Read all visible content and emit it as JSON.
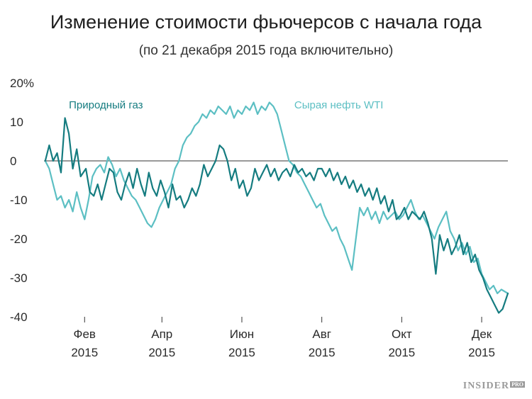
{
  "chart_data": {
    "type": "line",
    "title": "Изменение стоимости фьючерсов с начала года",
    "subtitle": "(по 21 декабря 2015 года включительно)",
    "y_ticks": [
      "20%",
      "10",
      "0",
      "-10",
      "-20",
      "-30",
      "-40"
    ],
    "ylim": [
      -40,
      20
    ],
    "xlim": [
      "2015-01-01",
      "2015-12-21"
    ],
    "x_ticks": [
      {
        "date": "2015-02-01",
        "month": "Фев",
        "year": "2015"
      },
      {
        "date": "2015-04-01",
        "month": "Апр",
        "year": "2015"
      },
      {
        "date": "2015-06-01",
        "month": "Июн",
        "year": "2015"
      },
      {
        "date": "2015-08-01",
        "month": "Авг",
        "year": "2015"
      },
      {
        "date": "2015-10-01",
        "month": "Окт",
        "year": "2015"
      },
      {
        "date": "2015-12-01",
        "month": "Дек",
        "year": "2015"
      }
    ],
    "grid": false,
    "zero_line": true,
    "series": [
      {
        "name": "Природный газ",
        "color": "#157c80",
        "points": [
          [
            "2015-01-02",
            0
          ],
          [
            "2015-01-05",
            4
          ],
          [
            "2015-01-08",
            0
          ],
          [
            "2015-01-11",
            2
          ],
          [
            "2015-01-14",
            -3
          ],
          [
            "2015-01-17",
            11
          ],
          [
            "2015-01-20",
            7
          ],
          [
            "2015-01-23",
            -2
          ],
          [
            "2015-01-26",
            3
          ],
          [
            "2015-01-29",
            -4
          ],
          [
            "2015-02-02",
            -2
          ],
          [
            "2015-02-05",
            -8
          ],
          [
            "2015-02-08",
            -9
          ],
          [
            "2015-02-11",
            -6
          ],
          [
            "2015-02-14",
            -10
          ],
          [
            "2015-02-17",
            -6
          ],
          [
            "2015-02-20",
            -2
          ],
          [
            "2015-02-23",
            -3
          ],
          [
            "2015-02-26",
            -8
          ],
          [
            "2015-03-01",
            -10
          ],
          [
            "2015-03-04",
            -6
          ],
          [
            "2015-03-07",
            -3
          ],
          [
            "2015-03-10",
            -7
          ],
          [
            "2015-03-13",
            -2
          ],
          [
            "2015-03-16",
            -6
          ],
          [
            "2015-03-19",
            -9
          ],
          [
            "2015-03-22",
            -3
          ],
          [
            "2015-03-25",
            -7
          ],
          [
            "2015-03-28",
            -9
          ],
          [
            "2015-03-31",
            -5
          ],
          [
            "2015-04-03",
            -8
          ],
          [
            "2015-04-06",
            -12
          ],
          [
            "2015-04-09",
            -6
          ],
          [
            "2015-04-12",
            -10
          ],
          [
            "2015-04-15",
            -9
          ],
          [
            "2015-04-18",
            -12
          ],
          [
            "2015-04-21",
            -10
          ],
          [
            "2015-04-24",
            -7
          ],
          [
            "2015-04-27",
            -9
          ],
          [
            "2015-04-30",
            -6
          ],
          [
            "2015-05-03",
            -1
          ],
          [
            "2015-05-06",
            -4
          ],
          [
            "2015-05-09",
            -2
          ],
          [
            "2015-05-12",
            0
          ],
          [
            "2015-05-15",
            4
          ],
          [
            "2015-05-18",
            3
          ],
          [
            "2015-05-21",
            0
          ],
          [
            "2015-05-24",
            -5
          ],
          [
            "2015-05-27",
            -2
          ],
          [
            "2015-05-30",
            -7
          ],
          [
            "2015-06-02",
            -5
          ],
          [
            "2015-06-05",
            -9
          ],
          [
            "2015-06-08",
            -7
          ],
          [
            "2015-06-11",
            -2
          ],
          [
            "2015-06-14",
            -5
          ],
          [
            "2015-06-17",
            -3
          ],
          [
            "2015-06-20",
            -1
          ],
          [
            "2015-06-23",
            -4
          ],
          [
            "2015-06-26",
            -2
          ],
          [
            "2015-06-29",
            -5
          ],
          [
            "2015-07-02",
            -3
          ],
          [
            "2015-07-05",
            -2
          ],
          [
            "2015-07-08",
            -4
          ],
          [
            "2015-07-11",
            -1
          ],
          [
            "2015-07-14",
            -3
          ],
          [
            "2015-07-17",
            -2
          ],
          [
            "2015-07-20",
            -4
          ],
          [
            "2015-07-23",
            -3
          ],
          [
            "2015-07-26",
            -5
          ],
          [
            "2015-07-29",
            -2
          ],
          [
            "2015-08-01",
            -2
          ],
          [
            "2015-08-04",
            -4
          ],
          [
            "2015-08-07",
            -2
          ],
          [
            "2015-08-10",
            -5
          ],
          [
            "2015-08-13",
            -3
          ],
          [
            "2015-08-16",
            -6
          ],
          [
            "2015-08-19",
            -4
          ],
          [
            "2015-08-22",
            -7
          ],
          [
            "2015-08-25",
            -5
          ],
          [
            "2015-08-28",
            -8
          ],
          [
            "2015-08-31",
            -6
          ],
          [
            "2015-09-03",
            -9
          ],
          [
            "2015-09-06",
            -7
          ],
          [
            "2015-09-09",
            -10
          ],
          [
            "2015-09-12",
            -7
          ],
          [
            "2015-09-15",
            -11
          ],
          [
            "2015-09-18",
            -9
          ],
          [
            "2015-09-21",
            -13
          ],
          [
            "2015-09-24",
            -10
          ],
          [
            "2015-09-27",
            -15
          ],
          [
            "2015-09-30",
            -14
          ],
          [
            "2015-10-03",
            -12
          ],
          [
            "2015-10-06",
            -15
          ],
          [
            "2015-10-09",
            -13
          ],
          [
            "2015-10-12",
            -14
          ],
          [
            "2015-10-15",
            -15
          ],
          [
            "2015-10-18",
            -13
          ],
          [
            "2015-10-21",
            -16
          ],
          [
            "2015-10-24",
            -20
          ],
          [
            "2015-10-27",
            -29
          ],
          [
            "2015-10-30",
            -19
          ],
          [
            "2015-11-02",
            -23
          ],
          [
            "2015-11-05",
            -20
          ],
          [
            "2015-11-08",
            -24
          ],
          [
            "2015-11-11",
            -22
          ],
          [
            "2015-11-14",
            -19
          ],
          [
            "2015-11-17",
            -24
          ],
          [
            "2015-11-20",
            -21
          ],
          [
            "2015-11-23",
            -26
          ],
          [
            "2015-11-26",
            -24
          ],
          [
            "2015-11-29",
            -28
          ],
          [
            "2015-12-02",
            -30
          ],
          [
            "2015-12-05",
            -33
          ],
          [
            "2015-12-08",
            -35
          ],
          [
            "2015-12-11",
            -37
          ],
          [
            "2015-12-14",
            -39
          ],
          [
            "2015-12-17",
            -38
          ],
          [
            "2015-12-21",
            -34
          ]
        ]
      },
      {
        "name": "Сырая нефть WTI",
        "color": "#5cbfc3",
        "points": [
          [
            "2015-01-02",
            0
          ],
          [
            "2015-01-05",
            -2
          ],
          [
            "2015-01-08",
            -6
          ],
          [
            "2015-01-11",
            -10
          ],
          [
            "2015-01-14",
            -9
          ],
          [
            "2015-01-17",
            -12
          ],
          [
            "2015-01-20",
            -10
          ],
          [
            "2015-01-23",
            -13
          ],
          [
            "2015-01-26",
            -8
          ],
          [
            "2015-01-29",
            -12
          ],
          [
            "2015-02-01",
            -15
          ],
          [
            "2015-02-04",
            -10
          ],
          [
            "2015-02-07",
            -4
          ],
          [
            "2015-02-10",
            -2
          ],
          [
            "2015-02-13",
            -1
          ],
          [
            "2015-02-16",
            -3
          ],
          [
            "2015-02-19",
            1
          ],
          [
            "2015-02-22",
            -1
          ],
          [
            "2015-02-25",
            -4
          ],
          [
            "2015-02-28",
            -2
          ],
          [
            "2015-03-03",
            -5
          ],
          [
            "2015-03-06",
            -7
          ],
          [
            "2015-03-09",
            -9
          ],
          [
            "2015-03-12",
            -10
          ],
          [
            "2015-03-15",
            -12
          ],
          [
            "2015-03-18",
            -14
          ],
          [
            "2015-03-21",
            -16
          ],
          [
            "2015-03-24",
            -17
          ],
          [
            "2015-03-27",
            -15
          ],
          [
            "2015-03-30",
            -12
          ],
          [
            "2015-04-02",
            -10
          ],
          [
            "2015-04-05",
            -8
          ],
          [
            "2015-04-08",
            -6
          ],
          [
            "2015-04-11",
            -2
          ],
          [
            "2015-04-14",
            0
          ],
          [
            "2015-04-17",
            4
          ],
          [
            "2015-04-20",
            6
          ],
          [
            "2015-04-23",
            7
          ],
          [
            "2015-04-26",
            9
          ],
          [
            "2015-04-29",
            10
          ],
          [
            "2015-05-02",
            12
          ],
          [
            "2015-05-05",
            11
          ],
          [
            "2015-05-08",
            13
          ],
          [
            "2015-05-11",
            12
          ],
          [
            "2015-05-14",
            14
          ],
          [
            "2015-05-17",
            13
          ],
          [
            "2015-05-20",
            12
          ],
          [
            "2015-05-23",
            14
          ],
          [
            "2015-05-26",
            11
          ],
          [
            "2015-05-29",
            13
          ],
          [
            "2015-06-01",
            12
          ],
          [
            "2015-06-04",
            14
          ],
          [
            "2015-06-07",
            13
          ],
          [
            "2015-06-10",
            15
          ],
          [
            "2015-06-13",
            12
          ],
          [
            "2015-06-16",
            14
          ],
          [
            "2015-06-19",
            13
          ],
          [
            "2015-06-22",
            15
          ],
          [
            "2015-06-25",
            14
          ],
          [
            "2015-06-28",
            12
          ],
          [
            "2015-07-01",
            8
          ],
          [
            "2015-07-04",
            4
          ],
          [
            "2015-07-07",
            0
          ],
          [
            "2015-07-10",
            -1
          ],
          [
            "2015-07-13",
            -3
          ],
          [
            "2015-07-16",
            -4
          ],
          [
            "2015-07-19",
            -6
          ],
          [
            "2015-07-22",
            -8
          ],
          [
            "2015-07-25",
            -10
          ],
          [
            "2015-07-28",
            -12
          ],
          [
            "2015-07-31",
            -11
          ],
          [
            "2015-08-03",
            -14
          ],
          [
            "2015-08-06",
            -16
          ],
          [
            "2015-08-09",
            -18
          ],
          [
            "2015-08-12",
            -17
          ],
          [
            "2015-08-15",
            -20
          ],
          [
            "2015-08-18",
            -22
          ],
          [
            "2015-08-21",
            -25
          ],
          [
            "2015-08-24",
            -28
          ],
          [
            "2015-08-27",
            -20
          ],
          [
            "2015-08-30",
            -12
          ],
          [
            "2015-09-02",
            -14
          ],
          [
            "2015-09-05",
            -12
          ],
          [
            "2015-09-08",
            -15
          ],
          [
            "2015-09-11",
            -13
          ],
          [
            "2015-09-14",
            -16
          ],
          [
            "2015-09-17",
            -13
          ],
          [
            "2015-09-20",
            -15
          ],
          [
            "2015-09-23",
            -14
          ],
          [
            "2015-09-26",
            -13
          ],
          [
            "2015-09-29",
            -15
          ],
          [
            "2015-10-02",
            -14
          ],
          [
            "2015-10-05",
            -12
          ],
          [
            "2015-10-08",
            -10
          ],
          [
            "2015-10-11",
            -13
          ],
          [
            "2015-10-14",
            -15
          ],
          [
            "2015-10-17",
            -14
          ],
          [
            "2015-10-20",
            -16
          ],
          [
            "2015-10-23",
            -18
          ],
          [
            "2015-10-26",
            -20
          ],
          [
            "2015-10-29",
            -17
          ],
          [
            "2015-11-01",
            -15
          ],
          [
            "2015-11-04",
            -13
          ],
          [
            "2015-11-07",
            -18
          ],
          [
            "2015-11-10",
            -20
          ],
          [
            "2015-11-13",
            -23
          ],
          [
            "2015-11-16",
            -21
          ],
          [
            "2015-11-19",
            -24
          ],
          [
            "2015-11-22",
            -22
          ],
          [
            "2015-11-25",
            -26
          ],
          [
            "2015-11-28",
            -25
          ],
          [
            "2015-12-01",
            -29
          ],
          [
            "2015-12-04",
            -31
          ],
          [
            "2015-12-07",
            -33
          ],
          [
            "2015-12-10",
            -32
          ],
          [
            "2015-12-13",
            -34
          ],
          [
            "2015-12-16",
            -33
          ],
          [
            "2015-12-21",
            -34
          ]
        ]
      }
    ]
  },
  "logo_text": "INSIDER",
  "logo_badge": "PRO"
}
